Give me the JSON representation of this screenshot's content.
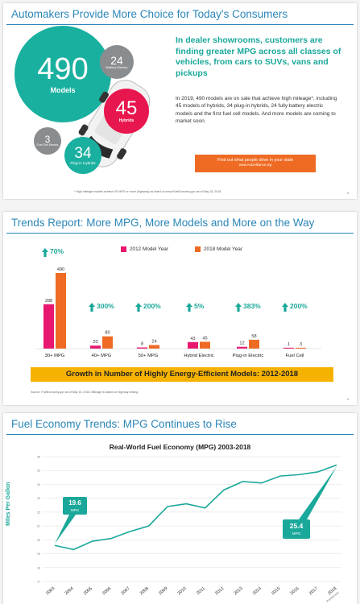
{
  "slide1": {
    "title": "Automakers Provide More Choice for Today’s Consumers",
    "circles": {
      "total": {
        "num": "490",
        "label": "Models"
      },
      "battery": {
        "num": "24",
        "label": "Battery Electric"
      },
      "hybrids": {
        "num": "45",
        "label": "Hybrids"
      },
      "fuelcell": {
        "num": "3",
        "label": "Fuel Cell Electric"
      },
      "plugin": {
        "num": "34",
        "label": "Plug-in Hybrids"
      }
    },
    "headline": "In dealer showrooms, customers are finding greater MPG across all classes of vehicles, from cars to SUVs, vans and pickups",
    "paragraph": "In 2019, 490 models are on sale that achieve high mileage*, including 45 models of hybrids, 34 plug-in hybrids, 24 fully battery electric models and the first fuel cell models. And more models are coming to market soon.",
    "button_text": "Find out what people drive in your state",
    "button_link": "www.AutoAlliance.org",
    "footnote": "* High mileage models achieve 30 MPG or more (highway) as listed on www.FuelEconomy.gov as of May 15, 2018",
    "page": "3",
    "colors": {
      "teal": "#1ab0a0",
      "pink": "#e8164e",
      "gray": "#8a8d90",
      "orange": "#ef6b23"
    }
  },
  "slide2": {
    "title": "Trends Report:  More MPG, More Models and More on the Way",
    "banner": "Growth in Number of Highly Energy-Efficient Models:  2012-2018",
    "footnote": "Source:  FuelEconomy.gov as of May 15, 2018. Mileage is based on highway driving.",
    "page": "4",
    "chart_data": {
      "type": "bar",
      "categories": [
        "30+ MPG",
        "40+ MPG",
        "50+ MPG",
        "Hybrid Electric",
        "Plug-in Electric",
        "Fuel Cell"
      ],
      "series": [
        {
          "name": "2012 Model Year",
          "values": [
            288,
            20,
            8,
            43,
            12,
            1
          ],
          "color": "#e8166e"
        },
        {
          "name": "2018 Model Year",
          "values": [
            490,
            80,
            24,
            45,
            58,
            3
          ],
          "color": "#ef6b23"
        }
      ],
      "growth": [
        "70%",
        "300%",
        "200%",
        "5%",
        "383%",
        "200%"
      ],
      "ylim": [
        0,
        490
      ],
      "legend": "top-center",
      "grid": false
    }
  },
  "slide3": {
    "title": "Fuel Economy Trends:  MPG Continues to Rise",
    "chart_data": {
      "type": "line",
      "title": "Real-World Fuel Economy (MPG) 2003-2018",
      "ylabel": "Miles Per Gallon",
      "x": [
        "2003",
        "2004",
        "2005",
        "2006",
        "2007",
        "2008",
        "2009",
        "2010",
        "2011",
        "2012",
        "2013",
        "2014",
        "2015",
        "2016",
        "2017",
        "2018"
      ],
      "x_note": "Preliminary",
      "values": [
        19.6,
        19.3,
        19.9,
        20.1,
        20.6,
        21.0,
        22.4,
        22.6,
        22.3,
        23.6,
        24.2,
        24.1,
        24.6,
        24.7,
        24.9,
        25.4
      ],
      "ylim": [
        17,
        26
      ],
      "yticks": [
        17,
        18,
        19,
        20,
        21,
        22,
        23,
        24,
        25,
        26
      ],
      "grid": true,
      "callouts": [
        {
          "x": "2003",
          "value": "19.6",
          "unit": "MPG"
        },
        {
          "x": "2018",
          "value": "25.4",
          "unit": "MPG"
        }
      ],
      "color": "#1aa89a"
    }
  }
}
